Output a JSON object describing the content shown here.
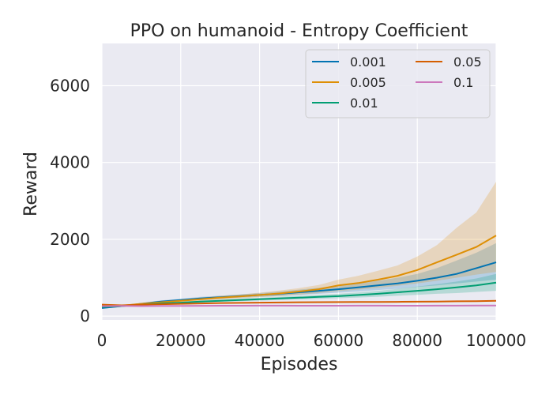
{
  "chart_data": {
    "type": "line",
    "title": "PPO on humanoid - Entropy Coefficient",
    "xlabel": "Episodes",
    "ylabel": "Reward",
    "xlim": [
      0,
      100000
    ],
    "ylim": [
      -100,
      7100
    ],
    "xticks": [
      0,
      20000,
      40000,
      60000,
      80000,
      100000
    ],
    "yticks": [
      0,
      2000,
      4000,
      6000
    ],
    "xtick_labels": [
      "0",
      "20000",
      "40000",
      "60000",
      "80000",
      "100000"
    ],
    "ytick_labels": [
      "0",
      "2000",
      "4000",
      "6000"
    ],
    "grid": true,
    "legend_position": "top-right",
    "legend_columns": 2,
    "x": [
      0,
      5000,
      10000,
      15000,
      20000,
      25000,
      30000,
      35000,
      40000,
      45000,
      50000,
      55000,
      60000,
      65000,
      70000,
      75000,
      80000,
      85000,
      90000,
      95000,
      100000
    ],
    "series": [
      {
        "name": "0.001",
        "color": "#0173b2",
        "values": [
          210,
          260,
          320,
          380,
          420,
          460,
          490,
          520,
          550,
          580,
          620,
          660,
          700,
          750,
          800,
          850,
          920,
          1000,
          1100,
          1250,
          1400
        ],
        "lower": [
          190,
          240,
          300,
          350,
          390,
          420,
          450,
          480,
          500,
          520,
          550,
          580,
          610,
          640,
          680,
          710,
          760,
          800,
          850,
          900,
          950
        ],
        "upper": [
          230,
          280,
          345,
          410,
          450,
          500,
          530,
          565,
          600,
          640,
          690,
          740,
          790,
          850,
          920,
          1000,
          1100,
          1250,
          1450,
          1650,
          1900
        ]
      },
      {
        "name": "0.005",
        "color": "#de8f05",
        "values": [
          250,
          270,
          320,
          360,
          400,
          440,
          480,
          510,
          550,
          590,
          640,
          700,
          800,
          860,
          950,
          1050,
          1200,
          1400,
          1600,
          1800,
          2100
        ],
        "lower": [
          230,
          250,
          300,
          335,
          370,
          400,
          430,
          460,
          490,
          520,
          560,
          600,
          650,
          690,
          740,
          790,
          850,
          920,
          1000,
          1080,
          1150
        ],
        "upper": [
          270,
          290,
          345,
          390,
          435,
          480,
          530,
          565,
          610,
          665,
          730,
          810,
          950,
          1050,
          1180,
          1320,
          1550,
          1850,
          2300,
          2700,
          3500
        ]
      },
      {
        "name": "0.01",
        "color": "#029e73",
        "values": [
          240,
          260,
          300,
          330,
          350,
          380,
          400,
          420,
          440,
          460,
          480,
          500,
          520,
          550,
          580,
          620,
          660,
          700,
          750,
          800,
          870
        ],
        "lower": [
          220,
          240,
          285,
          310,
          330,
          355,
          375,
          390,
          405,
          420,
          435,
          450,
          465,
          485,
          505,
          530,
          555,
          580,
          600,
          630,
          660
        ],
        "upper": [
          260,
          280,
          315,
          350,
          370,
          405,
          425,
          450,
          475,
          500,
          525,
          550,
          580,
          615,
          660,
          710,
          770,
          830,
          900,
          980,
          1100
        ]
      },
      {
        "name": "0.05",
        "color": "#d55e00",
        "values": [
          300,
          280,
          300,
          310,
          320,
          330,
          340,
          345,
          350,
          355,
          360,
          362,
          365,
          368,
          370,
          372,
          375,
          380,
          385,
          390,
          400
        ],
        "lower": [
          285,
          265,
          288,
          298,
          308,
          318,
          328,
          333,
          338,
          343,
          348,
          350,
          353,
          356,
          358,
          360,
          363,
          368,
          373,
          378,
          388
        ],
        "upper": [
          315,
          295,
          312,
          322,
          332,
          342,
          352,
          357,
          362,
          367,
          372,
          374,
          377,
          380,
          382,
          384,
          387,
          392,
          397,
          402,
          412
        ]
      },
      {
        "name": "0.1",
        "color": "#cc78bc",
        "values": [
          260,
          265,
          260,
          265,
          265,
          268,
          270,
          270,
          272,
          272,
          270,
          270,
          270,
          272,
          272,
          270,
          270,
          272,
          272,
          275,
          275
        ],
        "lower": [
          252,
          257,
          252,
          257,
          257,
          260,
          262,
          262,
          264,
          264,
          262,
          262,
          262,
          264,
          264,
          262,
          262,
          264,
          264,
          267,
          267
        ],
        "upper": [
          268,
          273,
          268,
          273,
          273,
          276,
          278,
          278,
          280,
          280,
          278,
          278,
          278,
          280,
          280,
          278,
          278,
          280,
          280,
          283,
          283
        ]
      }
    ]
  }
}
